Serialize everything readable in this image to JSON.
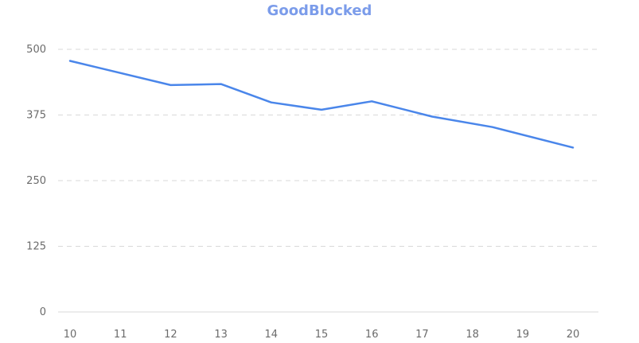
{
  "chart_data": {
    "type": "line",
    "title": "GoodBlocked",
    "xlabel": "",
    "ylabel": "",
    "x": [
      10,
      11,
      12,
      13,
      14,
      15,
      16,
      17,
      18,
      19,
      20
    ],
    "x_ticks": [
      "10",
      "11",
      "12",
      "13",
      "14",
      "15",
      "16",
      "17",
      "18",
      "19",
      "20"
    ],
    "y_ticks": [
      0,
      125,
      250,
      375,
      500
    ],
    "ylim": [
      0,
      500
    ],
    "grid": true,
    "legend": "none",
    "series": [
      {
        "color": "#4a86ea",
        "points": [
          {
            "x": 10,
            "y": 478
          },
          {
            "x": 12,
            "y": 432
          },
          {
            "x": 13,
            "y": 434
          },
          {
            "x": 14,
            "y": 399
          },
          {
            "x": 15,
            "y": 385
          },
          {
            "x": 16,
            "y": 401
          },
          {
            "x": 17.2,
            "y": 372
          },
          {
            "x": 18.4,
            "y": 352
          },
          {
            "x": 20,
            "y": 313
          }
        ]
      }
    ],
    "title_color": "#7b9cea"
  }
}
